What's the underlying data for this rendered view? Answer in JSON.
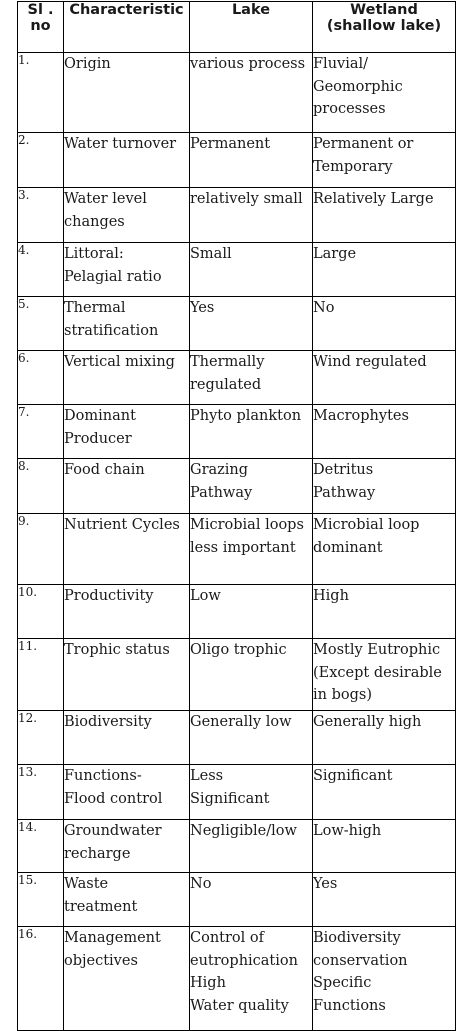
{
  "headers": {
    "sl_line1": "Sl .",
    "sl_line2": "no",
    "characteristic": "Characteristic",
    "lake": "Lake",
    "wetland_line1": "Wetland",
    "wetland_line2": "(shallow lake)"
  },
  "rows": [
    {
      "no": "1.",
      "char": [
        "Origin"
      ],
      "lake": [
        "various process"
      ],
      "wetland": [
        "Fluvial/",
        "Geomorphic",
        "processes"
      ]
    },
    {
      "no": "2.",
      "char": [
        "Water turnover"
      ],
      "lake": [
        "Permanent"
      ],
      "wetland": [
        "Permanent or",
        "Temporary"
      ]
    },
    {
      "no": "3.",
      "char": [
        "Water level",
        "changes"
      ],
      "lake": [
        "relatively small"
      ],
      "wetland": [
        "Relatively Large"
      ]
    },
    {
      "no": "4.",
      "char": [
        "Littoral:",
        "Pelagial ratio"
      ],
      "lake": [
        "Small"
      ],
      "wetland": [
        "Large"
      ]
    },
    {
      "no": "5.",
      "char": [
        "Thermal",
        "stratification"
      ],
      "lake": [
        "Yes"
      ],
      "wetland": [
        "No"
      ]
    },
    {
      "no": "6.",
      "char": [
        "Vertical mixing"
      ],
      "lake": [
        "Thermally",
        "regulated"
      ],
      "wetland": [
        "Wind regulated"
      ]
    },
    {
      "no": "7.",
      "char": [
        "Dominant",
        "Producer"
      ],
      "lake": [
        "Phyto plankton"
      ],
      "wetland": [
        "Macrophytes"
      ]
    },
    {
      "no": "8.",
      "char": [
        "Food chain"
      ],
      "lake": [
        "Grazing",
        "Pathway"
      ],
      "wetland": [
        "Detritus",
        "Pathway"
      ]
    },
    {
      "no": "9.",
      "char": [
        "Nutrient Cycles"
      ],
      "lake": [
        "Microbial loops",
        "less important"
      ],
      "wetland": [
        "Microbial loop",
        "dominant"
      ]
    },
    {
      "no": "10.",
      "char": [
        "Productivity"
      ],
      "lake": [
        "Low"
      ],
      "wetland": [
        "High"
      ]
    },
    {
      "no": "11.",
      "char": [
        "Trophic status"
      ],
      "lake": [
        "Oligo trophic"
      ],
      "wetland": [
        "Mostly Eutrophic",
        "(Except desirable",
        "in bogs)"
      ]
    },
    {
      "no": "12.",
      "char": [
        "Biodiversity"
      ],
      "lake": [
        "Generally low"
      ],
      "wetland": [
        "Generally high"
      ]
    },
    {
      "no": "13.",
      "char": [
        "Functions-",
        "Flood control"
      ],
      "lake": [
        "Less",
        "Significant"
      ],
      "wetland": [
        "Significant"
      ]
    },
    {
      "no": "14.",
      "char": [
        "Groundwater",
        "recharge"
      ],
      "lake": [
        "Negligible/low"
      ],
      "wetland": [
        "Low-high"
      ]
    },
    {
      "no": "15.",
      "char": [
        "Waste",
        "treatment"
      ],
      "lake": [
        "No"
      ],
      "wetland": [
        "Yes"
      ]
    },
    {
      "no": "16.",
      "char": [
        "Management",
        "objectives"
      ],
      "lake": [
        "Control of",
        "eutrophication",
        "High",
        "Water quality"
      ],
      "wetland": [
        "Biodiversity",
        "conservation",
        "Specific",
        "Functions"
      ]
    }
  ]
}
